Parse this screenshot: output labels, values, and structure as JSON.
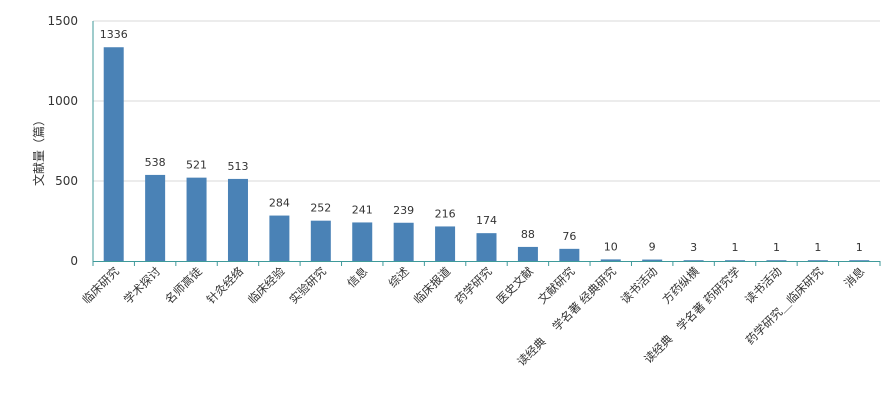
{
  "chart_data": {
    "type": "bar",
    "ylabel": "文献量（篇）",
    "ylim": [
      0,
      1500
    ],
    "yticks": [
      0,
      500,
      1000,
      1500
    ],
    "grid": true,
    "categories": [
      "临床研究",
      "学术探讨",
      "名师高徒",
      "针灸经络",
      "临床经验",
      "实验研究",
      "信息",
      "综述",
      "临床报道",
      "药学研究",
      "医史文献",
      "文献研究",
      "读经典　 学名著 经典研究",
      "读书活动",
      "方药纵横",
      "读经典　学名著 药研究学",
      "读书活动",
      "药学研究＿临床研究",
      "消息"
    ],
    "values": [
      1336,
      538,
      521,
      513,
      284,
      252,
      241,
      239,
      216,
      174,
      88,
      76,
      10,
      9,
      3,
      1,
      1,
      1,
      1
    ],
    "colors": {
      "bar": "#4a82b6",
      "axis": "#3f9a9a",
      "grid": "#d9d9d9"
    }
  }
}
